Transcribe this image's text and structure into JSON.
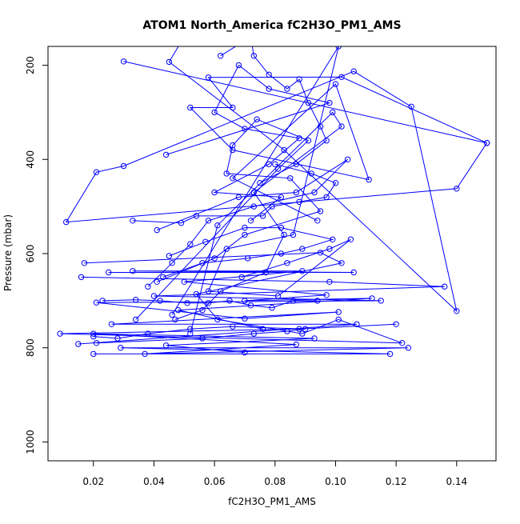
{
  "chart_data": {
    "type": "line",
    "title": "ATOM1 North_America fC2H3O_PM1_AMS",
    "xlabel": "fC2H3O_PM1_AMS",
    "ylabel": "Pressure (mbar)",
    "xlim": [
      0.005,
      0.153
    ],
    "ylim": [
      1040,
      160
    ],
    "y_axis_inverted": true,
    "xticks": [
      0.02,
      0.04,
      0.06,
      0.08,
      0.1,
      0.12,
      0.14
    ],
    "xtick_labels": [
      "0.02",
      "0.04",
      "0.06",
      "0.08",
      "0.10",
      "0.12",
      "0.14"
    ],
    "yticks": [
      200,
      400,
      600,
      800,
      1000
    ],
    "ytick_labels": [
      "200",
      "400",
      "600",
      "800",
      "1000"
    ],
    "grid": false,
    "legend": "none",
    "marker": "open-circle",
    "line_color": "#0000ff",
    "series": [
      {
        "values": [
          [
            0.15,
            365
          ],
          [
            0.14,
            462
          ],
          [
            0.011,
            533
          ],
          [
            0.021,
            427
          ],
          [
            0.03,
            414
          ],
          [
            0.106,
            213
          ],
          [
            0.125,
            288
          ],
          [
            0.14,
            722
          ],
          [
            0.083,
            380
          ],
          [
            0.045,
            193
          ],
          [
            0.052,
            118
          ]
        ]
      },
      {
        "values": [
          [
            0.03,
            192
          ],
          [
            0.15,
            365
          ],
          [
            0.102,
            225
          ],
          [
            0.058,
            226
          ],
          [
            0.066,
            290
          ],
          [
            0.052,
            290
          ],
          [
            0.066,
            380
          ],
          [
            0.111,
            443
          ],
          [
            0.1,
            240
          ],
          [
            0.066,
            440
          ],
          [
            0.094,
            530
          ]
        ]
      },
      {
        "values": [
          [
            0.017,
            620
          ],
          [
            0.095,
            598
          ],
          [
            0.102,
            620
          ],
          [
            0.054,
            686
          ],
          [
            0.061,
            740
          ],
          [
            0.089,
            770
          ],
          [
            0.101,
            740
          ],
          [
            0.122,
            790
          ],
          [
            0.009,
            770
          ],
          [
            0.088,
            760
          ],
          [
            0.12,
            750
          ]
        ]
      },
      {
        "values": [
          [
            0.016,
            650
          ],
          [
            0.098,
            660
          ],
          [
            0.136,
            670
          ],
          [
            0.04,
            690
          ],
          [
            0.115,
            700
          ],
          [
            0.021,
            704
          ],
          [
            0.07,
            738
          ],
          [
            0.101,
            724
          ],
          [
            0.026,
            750
          ],
          [
            0.107,
            750
          ],
          [
            0.015,
            792
          ]
        ]
      },
      {
        "values": [
          [
            0.02,
            813
          ],
          [
            0.118,
            813
          ],
          [
            0.029,
            800
          ],
          [
            0.124,
            800
          ],
          [
            0.037,
            813
          ],
          [
            0.087,
            793
          ],
          [
            0.02,
            770
          ],
          [
            0.093,
            780
          ],
          [
            0.044,
            795
          ],
          [
            0.07,
            810
          ]
        ]
      },
      {
        "values": [
          [
            0.025,
            640
          ],
          [
            0.106,
            640
          ],
          [
            0.033,
            637
          ],
          [
            0.089,
            637
          ],
          [
            0.05,
            660
          ],
          [
            0.097,
            688
          ],
          [
            0.07,
            700
          ],
          [
            0.112,
            695
          ],
          [
            0.048,
            720
          ],
          [
            0.076,
            760
          ]
        ]
      },
      {
        "values": [
          [
            0.044,
            390
          ],
          [
            0.098,
            280
          ],
          [
            0.078,
            250
          ],
          [
            0.068,
            200
          ],
          [
            0.06,
            300
          ],
          [
            0.07,
            335
          ],
          [
            0.088,
            355
          ],
          [
            0.078,
            410
          ],
          [
            0.06,
            470
          ],
          [
            0.082,
            480
          ],
          [
            0.072,
            530
          ]
        ]
      },
      {
        "values": [
          [
            0.052,
            770
          ],
          [
            0.061,
            540
          ],
          [
            0.099,
            300
          ],
          [
            0.102,
            330
          ],
          [
            0.073,
            470
          ],
          [
            0.083,
            560
          ],
          [
            0.077,
            640
          ],
          [
            0.062,
            680
          ],
          [
            0.056,
            720
          ],
          [
            0.047,
            740
          ]
        ]
      },
      {
        "values": [
          [
            0.034,
            740
          ],
          [
            0.081,
            420
          ],
          [
            0.091,
            360
          ],
          [
            0.074,
            315
          ],
          [
            0.066,
            370
          ],
          [
            0.064,
            430
          ],
          [
            0.085,
            440
          ],
          [
            0.095,
            510
          ],
          [
            0.07,
            560
          ],
          [
            0.06,
            610
          ],
          [
            0.041,
            660
          ]
        ]
      },
      {
        "values": [
          [
            0.046,
            730
          ],
          [
            0.101,
            160
          ],
          [
            0.086,
            560
          ],
          [
            0.064,
            590
          ],
          [
            0.058,
            680
          ],
          [
            0.081,
            690
          ],
          [
            0.105,
            570
          ],
          [
            0.098,
            590
          ],
          [
            0.084,
            620
          ],
          [
            0.069,
            650
          ]
        ]
      },
      {
        "values": [
          [
            0.041,
            550
          ],
          [
            0.068,
            480
          ],
          [
            0.087,
            470
          ],
          [
            0.104,
            400
          ],
          [
            0.093,
            470
          ],
          [
            0.073,
            500
          ],
          [
            0.058,
            530
          ],
          [
            0.052,
            580
          ],
          [
            0.046,
            620
          ],
          [
            0.038,
            670
          ]
        ]
      },
      {
        "values": [
          [
            0.033,
            530
          ],
          [
            0.049,
            535
          ],
          [
            0.054,
            520
          ],
          [
            0.076,
            520
          ],
          [
            0.079,
            500
          ],
          [
            0.088,
            490
          ],
          [
            0.097,
            480
          ],
          [
            0.1,
            450
          ],
          [
            0.092,
            430
          ],
          [
            0.08,
            410
          ]
        ]
      },
      {
        "values": [
          [
            0.021,
            790
          ],
          [
            0.056,
            780
          ],
          [
            0.073,
            770
          ],
          [
            0.084,
            765
          ],
          [
            0.09,
            760
          ],
          [
            0.066,
            755
          ],
          [
            0.052,
            760
          ],
          [
            0.038,
            770
          ],
          [
            0.028,
            780
          ],
          [
            0.02,
            776
          ]
        ]
      },
      {
        "values": [
          [
            0.062,
            180
          ],
          [
            0.072,
            140
          ],
          [
            0.073,
            180
          ],
          [
            0.078,
            220
          ],
          [
            0.084,
            250
          ],
          [
            0.088,
            230
          ],
          [
            0.091,
            280
          ],
          [
            0.095,
            330
          ],
          [
            0.097,
            360
          ],
          [
            0.087,
            410
          ],
          [
            0.075,
            450
          ]
        ]
      },
      {
        "values": [
          [
            0.043,
            650
          ],
          [
            0.056,
            620
          ],
          [
            0.071,
            610
          ],
          [
            0.082,
            600
          ],
          [
            0.089,
            590
          ],
          [
            0.099,
            570
          ],
          [
            0.082,
            545
          ],
          [
            0.07,
            545
          ],
          [
            0.057,
            575
          ],
          [
            0.045,
            605
          ]
        ]
      },
      {
        "values": [
          [
            0.023,
            700
          ],
          [
            0.034,
            698
          ],
          [
            0.042,
            700
          ],
          [
            0.051,
            705
          ],
          [
            0.058,
            705
          ],
          [
            0.065,
            700
          ],
          [
            0.072,
            710
          ],
          [
            0.079,
            715
          ],
          [
            0.086,
            700
          ],
          [
            0.094,
            700
          ]
        ]
      }
    ]
  }
}
